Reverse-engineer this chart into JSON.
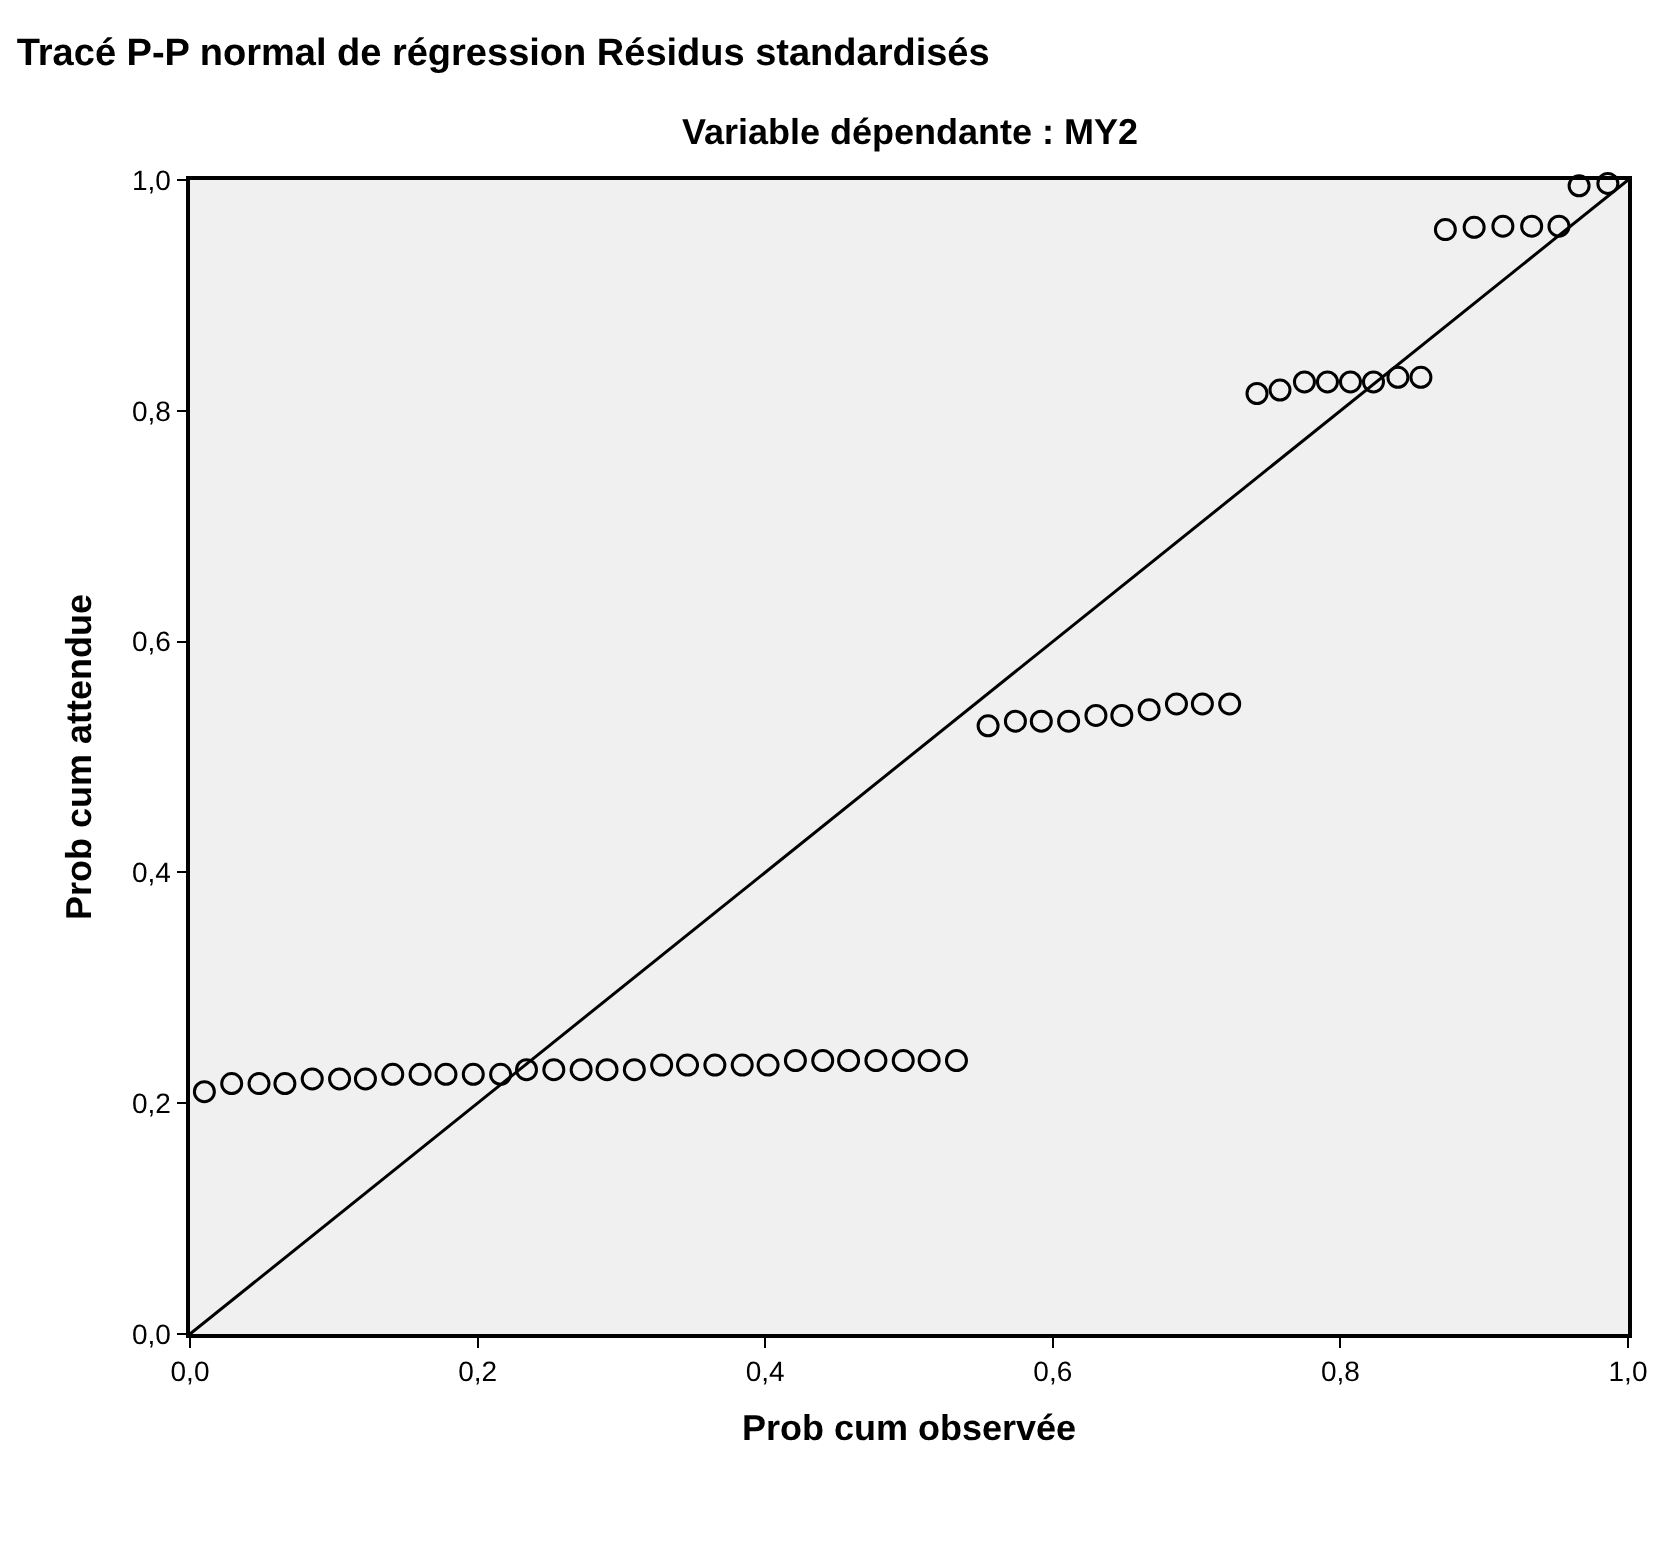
{
  "chart_data": {
    "type": "scatter",
    "title": "Tracé P-P normal de régression Résidus standardisés",
    "subtitle": "Variable dépendante : MY2",
    "xlabel": "Prob cum observée",
    "ylabel": "Prob cum attendue",
    "xlim": [
      0,
      1
    ],
    "ylim": [
      0,
      1
    ],
    "xticks": [
      {
        "value": 0,
        "label": "0,0"
      },
      {
        "value": 0.2,
        "label": "0,2"
      },
      {
        "value": 0.4,
        "label": "0,4"
      },
      {
        "value": 0.6,
        "label": "0,6"
      },
      {
        "value": 0.8,
        "label": "0,8"
      },
      {
        "value": 1,
        "label": "1,0"
      }
    ],
    "yticks": [
      {
        "value": 0,
        "label": "0,0"
      },
      {
        "value": 0.2,
        "label": "0,2"
      },
      {
        "value": 0.4,
        "label": "0,4"
      },
      {
        "value": 0.6,
        "label": "0,6"
      },
      {
        "value": 0.8,
        "label": "0,8"
      },
      {
        "value": 1,
        "label": "1,0"
      }
    ],
    "grid": false,
    "series": [
      {
        "marker": "circle",
        "color": "#000000",
        "x": [
          0.01,
          0.029,
          0.048,
          0.066,
          0.085,
          0.104,
          0.122,
          0.141,
          0.16,
          0.178,
          0.197,
          0.216,
          0.234,
          0.253,
          0.272,
          0.29,
          0.309,
          0.328,
          0.346,
          0.365,
          0.384,
          0.402,
          0.421,
          0.44,
          0.458,
          0.477,
          0.496,
          0.514,
          0.533,
          0.555,
          0.574,
          0.592,
          0.611,
          0.63,
          0.648,
          0.667,
          0.686,
          0.704,
          0.723,
          0.742,
          0.758,
          0.775,
          0.791,
          0.807,
          0.823,
          0.84,
          0.856,
          0.873,
          0.893,
          0.913,
          0.933,
          0.952,
          0.966,
          0.986
        ],
        "values": [
          0.21,
          0.217,
          0.217,
          0.217,
          0.221,
          0.221,
          0.221,
          0.225,
          0.225,
          0.225,
          0.225,
          0.225,
          0.229,
          0.229,
          0.229,
          0.229,
          0.229,
          0.233,
          0.233,
          0.233,
          0.233,
          0.233,
          0.237,
          0.237,
          0.237,
          0.237,
          0.237,
          0.237,
          0.237,
          0.527,
          0.531,
          0.531,
          0.531,
          0.536,
          0.536,
          0.541,
          0.546,
          0.546,
          0.546,
          0.815,
          0.818,
          0.825,
          0.825,
          0.825,
          0.825,
          0.829,
          0.829,
          0.957,
          0.959,
          0.96,
          0.96,
          0.96,
          0.995,
          0.997
        ]
      },
      {
        "type": "line",
        "marker": "none",
        "color": "#000000",
        "x": [
          0,
          1
        ],
        "values": [
          0,
          1
        ]
      }
    ]
  }
}
